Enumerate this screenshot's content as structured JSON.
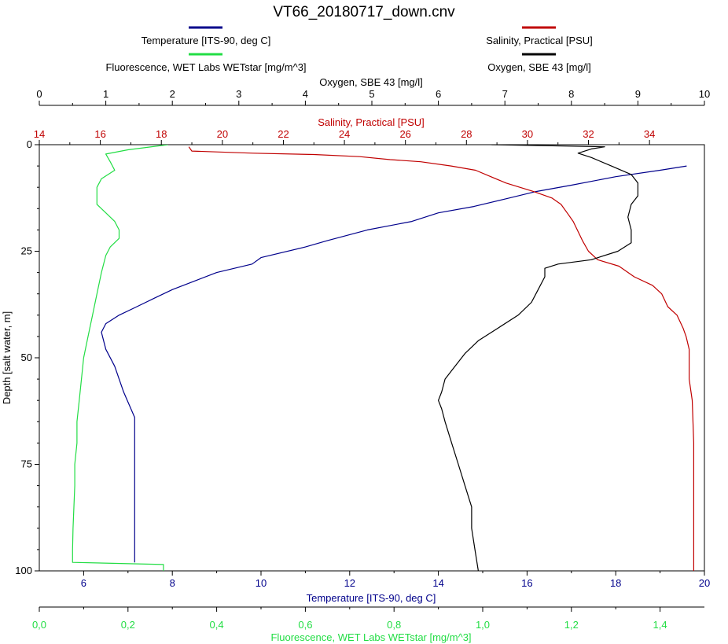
{
  "chart_data": {
    "type": "line",
    "title": "VT66_20180717_down.cnv",
    "legend": [
      {
        "label": "Temperature [ITS-90, deg C]",
        "color": "#00008b"
      },
      {
        "label": "Salinity, Practical [PSU]",
        "color": "#c00000"
      },
      {
        "label": "Fluorescence, WET Labs WETstar [mg/m^3]",
        "color": "#22dd44"
      },
      {
        "label": "Oxygen, SBE 43 [mg/l]",
        "color": "#000000"
      }
    ],
    "y_axis": {
      "label": "Depth [salt water, m]",
      "range": [
        0,
        100
      ],
      "inverted": true,
      "ticks": [
        "0",
        "25",
        "50",
        "75",
        "100"
      ]
    },
    "axes": {
      "oxygen": {
        "label": "Oxygen, SBE 43 [mg/l]",
        "position": "top",
        "color": "#000000",
        "range": [
          0,
          10
        ],
        "ticks": [
          {
            "v": 0,
            "t": "0"
          },
          {
            "v": 1,
            "t": "1"
          },
          {
            "v": 2,
            "t": "2"
          },
          {
            "v": 3,
            "t": "3"
          },
          {
            "v": 4,
            "t": "4"
          },
          {
            "v": 5,
            "t": "5"
          },
          {
            "v": 6,
            "t": "6"
          },
          {
            "v": 7,
            "t": "7"
          },
          {
            "v": 8,
            "t": "8"
          },
          {
            "v": 9,
            "t": "9"
          },
          {
            "v": 10,
            "t": "10"
          }
        ]
      },
      "salinity": {
        "label": "Salinity, Practical [PSU]",
        "position": "top",
        "color": "#c00000",
        "range": [
          14,
          35.8
        ],
        "ticks": [
          {
            "v": 14,
            "t": "14"
          },
          {
            "v": 16,
            "t": "16"
          },
          {
            "v": 18,
            "t": "18"
          },
          {
            "v": 20,
            "t": "20"
          },
          {
            "v": 22,
            "t": "22"
          },
          {
            "v": 24,
            "t": "24"
          },
          {
            "v": 26,
            "t": "26"
          },
          {
            "v": 28,
            "t": "28"
          },
          {
            "v": 30,
            "t": "30"
          },
          {
            "v": 32,
            "t": "32"
          },
          {
            "v": 34,
            "t": "34"
          }
        ]
      },
      "temperature": {
        "label": "Temperature [ITS-90, deg C]",
        "position": "bottom",
        "color": "#00008b",
        "range": [
          5,
          20
        ],
        "ticks": [
          {
            "v": 6,
            "t": "6"
          },
          {
            "v": 8,
            "t": "8"
          },
          {
            "v": 10,
            "t": "10"
          },
          {
            "v": 12,
            "t": "12"
          },
          {
            "v": 14,
            "t": "14"
          },
          {
            "v": 16,
            "t": "16"
          },
          {
            "v": 18,
            "t": "18"
          },
          {
            "v": 20,
            "t": "20"
          }
        ]
      },
      "fluorescence": {
        "label": "Fluorescence, WET Labs WETstar [mg/m^3]",
        "position": "bottom",
        "color": "#22dd44",
        "range": [
          0,
          1.5
        ],
        "ticks": [
          {
            "v": 0,
            "t": "0,0"
          },
          {
            "v": 0.2,
            "t": "0,2"
          },
          {
            "v": 0.4,
            "t": "0,4"
          },
          {
            "v": 0.6,
            "t": "0,6"
          },
          {
            "v": 0.8,
            "t": "0,8"
          },
          {
            "v": 1.0,
            "t": "1,0"
          },
          {
            "v": 1.2,
            "t": "1,2"
          },
          {
            "v": 1.4,
            "t": "1,4"
          }
        ]
      }
    },
    "series": [
      {
        "name": "Temperature [ITS-90, deg C]",
        "axis": "temperature",
        "color": "#00008b",
        "points": [
          [
            19.6,
            5
          ],
          [
            19,
            6
          ],
          [
            18,
            7.5
          ],
          [
            17,
            9.5
          ],
          [
            16.2,
            11
          ],
          [
            15.6,
            12.5
          ],
          [
            14.8,
            14.5
          ],
          [
            14,
            16
          ],
          [
            13.4,
            18
          ],
          [
            12.4,
            20
          ],
          [
            11.5,
            22.5
          ],
          [
            11,
            24
          ],
          [
            10,
            26.5
          ],
          [
            9.8,
            28
          ],
          [
            9,
            30
          ],
          [
            8.5,
            32
          ],
          [
            8,
            34
          ],
          [
            7.6,
            36
          ],
          [
            7.2,
            38
          ],
          [
            6.8,
            40
          ],
          [
            6.5,
            42
          ],
          [
            6.4,
            44
          ],
          [
            6.5,
            48
          ],
          [
            6.7,
            52
          ],
          [
            6.9,
            58
          ],
          [
            7.15,
            64
          ],
          [
            7.15,
            75
          ],
          [
            7.15,
            85
          ],
          [
            7.15,
            98
          ]
        ]
      },
      {
        "name": "Salinity, Practical [PSU]",
        "axis": "salinity",
        "color": "#c00000",
        "points": [
          [
            18.9,
            0.5
          ],
          [
            19,
            1.5
          ],
          [
            21,
            2
          ],
          [
            23,
            2.3
          ],
          [
            24.5,
            2.8
          ],
          [
            25.5,
            3.5
          ],
          [
            26.5,
            4
          ],
          [
            27.5,
            5
          ],
          [
            28.3,
            6
          ],
          [
            28.8,
            7.5
          ],
          [
            29.3,
            9
          ],
          [
            30.2,
            11
          ],
          [
            30.8,
            12.5
          ],
          [
            31.1,
            14
          ],
          [
            31.3,
            16
          ],
          [
            31.5,
            18
          ],
          [
            31.7,
            21
          ],
          [
            31.8,
            22.5
          ],
          [
            32,
            25
          ],
          [
            32.3,
            27
          ],
          [
            33,
            28.5
          ],
          [
            33.5,
            31
          ],
          [
            34.1,
            33
          ],
          [
            34.4,
            35
          ],
          [
            34.6,
            38
          ],
          [
            34.9,
            40
          ],
          [
            35.1,
            43
          ],
          [
            35.2,
            45
          ],
          [
            35.3,
            48
          ],
          [
            35.3,
            55
          ],
          [
            35.4,
            60
          ],
          [
            35.45,
            70
          ],
          [
            35.45,
            85
          ],
          [
            35.45,
            100
          ]
        ]
      },
      {
        "name": "Fluorescence, WET Labs WETstar [mg/m^3]",
        "axis": "fluorescence",
        "color": "#22dd44",
        "points": [
          [
            0.29,
            0
          ],
          [
            0.2,
            1.2
          ],
          [
            0.15,
            2.2
          ],
          [
            0.16,
            4
          ],
          [
            0.17,
            6
          ],
          [
            0.14,
            8
          ],
          [
            0.13,
            10
          ],
          [
            0.13,
            12
          ],
          [
            0.13,
            14
          ],
          [
            0.15,
            16
          ],
          [
            0.17,
            18
          ],
          [
            0.18,
            20
          ],
          [
            0.18,
            22
          ],
          [
            0.16,
            24
          ],
          [
            0.15,
            26
          ],
          [
            0.14,
            30
          ],
          [
            0.13,
            35
          ],
          [
            0.12,
            40
          ],
          [
            0.11,
            45
          ],
          [
            0.1,
            50
          ],
          [
            0.095,
            55
          ],
          [
            0.09,
            60
          ],
          [
            0.085,
            65
          ],
          [
            0.085,
            70
          ],
          [
            0.08,
            75
          ],
          [
            0.08,
            80
          ],
          [
            0.078,
            85
          ],
          [
            0.076,
            90
          ],
          [
            0.075,
            95
          ],
          [
            0.075,
            98
          ],
          [
            0.28,
            98.5
          ],
          [
            0.28,
            100
          ]
        ]
      },
      {
        "name": "Oxygen, SBE 43 [mg/l]",
        "axis": "oxygen",
        "color": "#000000",
        "points": [
          [
            6.8,
            0
          ],
          [
            8.5,
            0.5
          ],
          [
            8.3,
            1
          ],
          [
            8.1,
            2
          ],
          [
            8.3,
            3
          ],
          [
            8.6,
            5
          ],
          [
            8.9,
            7
          ],
          [
            9,
            9
          ],
          [
            9,
            12
          ],
          [
            8.9,
            14
          ],
          [
            8.85,
            17
          ],
          [
            8.9,
            20
          ],
          [
            8.9,
            23
          ],
          [
            8.7,
            25
          ],
          [
            8.3,
            27
          ],
          [
            7.8,
            28
          ],
          [
            7.6,
            29
          ],
          [
            7.6,
            31
          ],
          [
            7.5,
            34
          ],
          [
            7.4,
            37
          ],
          [
            7.2,
            40
          ],
          [
            6.9,
            43
          ],
          [
            6.6,
            46
          ],
          [
            6.4,
            49
          ],
          [
            6.3,
            51
          ],
          [
            6.2,
            53
          ],
          [
            6.1,
            55
          ],
          [
            6.05,
            58
          ],
          [
            6.0,
            60
          ],
          [
            6.05,
            62
          ],
          [
            6.1,
            65
          ],
          [
            6.2,
            70
          ],
          [
            6.3,
            75
          ],
          [
            6.4,
            80
          ],
          [
            6.5,
            85
          ],
          [
            6.5,
            90
          ],
          [
            6.55,
            95
          ],
          [
            6.6,
            100
          ]
        ]
      }
    ]
  }
}
